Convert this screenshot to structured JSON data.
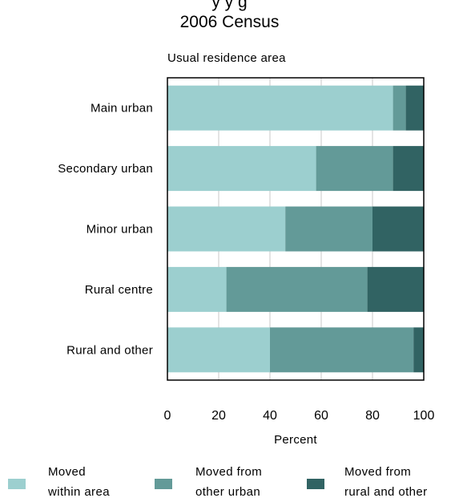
{
  "chart_data": {
    "type": "bar",
    "orientation": "horizontal",
    "stacked": true,
    "title_top_partial": "y                                                    y      g",
    "title": "2006 Census",
    "ylabel": "Usual residence area",
    "xlabel": "Percent",
    "xlim": [
      0,
      100
    ],
    "xticks": [
      "0",
      "20",
      "40",
      "60",
      "80",
      "100"
    ],
    "grid": "vertical",
    "legend_position": "bottom",
    "categories": [
      "Main urban",
      "Secondary urban",
      "Minor urban",
      "Rural centre",
      "Rural and other"
    ],
    "series": [
      {
        "name": "Moved within area",
        "legend_lines": [
          "Moved",
          "within area"
        ],
        "color": "#9ccfcf",
        "values": [
          88,
          58,
          46,
          23,
          40
        ]
      },
      {
        "name": "Moved from other urban",
        "legend_lines": [
          "Moved from",
          "other urban"
        ],
        "color": "#639a98",
        "values": [
          5,
          30,
          34,
          55,
          56
        ]
      },
      {
        "name": "Moved from rural and other",
        "legend_lines": [
          "Moved from",
          "rural and other"
        ],
        "color": "#316363",
        "values": [
          7,
          12,
          20,
          22,
          4
        ]
      }
    ]
  }
}
